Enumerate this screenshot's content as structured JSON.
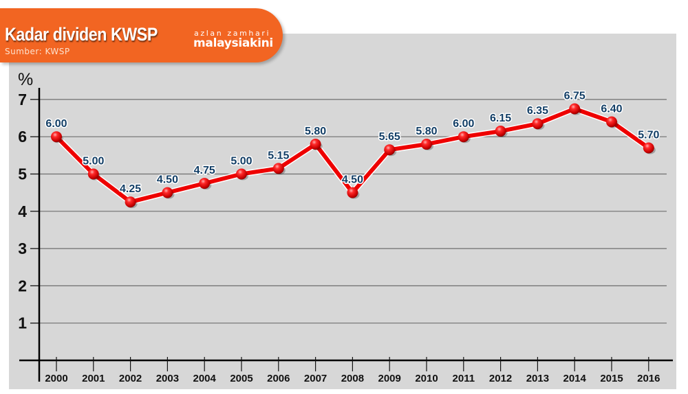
{
  "header": {
    "title": "Kadar dividen KWSP",
    "source": "Sumber: KWSP",
    "author": "azlan zamhari",
    "brand": "malaysiakini"
  },
  "colors": {
    "banner": "#f26522",
    "panel": "#d7d7d7",
    "line": "#ee0000",
    "label": "#123e66"
  },
  "chart_data": {
    "type": "line",
    "title": "Kadar dividen KWSP",
    "subtitle": "Sumber: KWSP",
    "xlabel": "",
    "ylabel": "%",
    "categories": [
      "2000",
      "2001",
      "2002",
      "2003",
      "2004",
      "2005",
      "2006",
      "2007",
      "2008",
      "2009",
      "2010",
      "2011",
      "2012",
      "2013",
      "2014",
      "2015",
      "2016"
    ],
    "series": [
      {
        "name": "Kadar dividen",
        "values": [
          6.0,
          5.0,
          4.25,
          4.5,
          4.75,
          5.0,
          5.15,
          5.8,
          4.5,
          5.65,
          5.8,
          6.0,
          6.15,
          6.35,
          6.75,
          6.4,
          5.7
        ],
        "labels": [
          "6.00",
          "5.00",
          "4.25",
          "4.50",
          "4.75",
          "5.00",
          "5.15",
          "5.80",
          "4.50",
          "5.65",
          "5.80",
          "6.00",
          "6.15",
          "6.35",
          "6.75",
          "6.40",
          "5.70"
        ]
      }
    ],
    "ylim": [
      0,
      7
    ],
    "yticks": [
      1,
      2,
      3,
      4,
      5,
      6,
      7
    ],
    "grid": true,
    "legend": "none"
  }
}
